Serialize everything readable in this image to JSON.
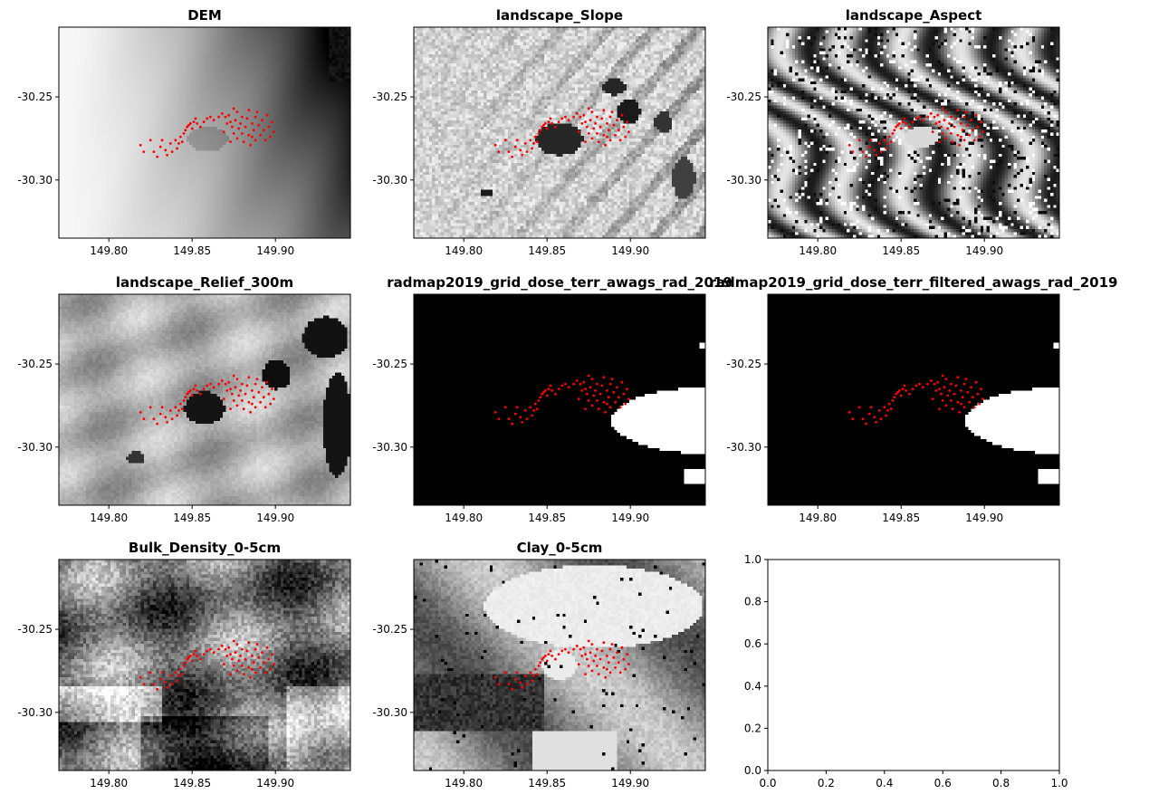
{
  "figure": {
    "layout": "3x3 grid of map panels"
  },
  "chart_data": [
    {
      "type": "heatmap",
      "title": "DEM",
      "xlim": [
        149.77,
        149.945
      ],
      "ylim": [
        -30.335,
        -30.208
      ],
      "xticks": [
        {
          "v": 149.8,
          "label": "149.80"
        },
        {
          "v": 149.85,
          "label": "149.85"
        },
        {
          "v": 149.9,
          "label": "149.90"
        }
      ],
      "yticks": [
        {
          "v": -30.25,
          "label": "-30.25"
        },
        {
          "v": -30.3,
          "label": "-30.30"
        }
      ],
      "colormap": "grayscale",
      "point_color": "#ff0000",
      "raster": "dem"
    },
    {
      "type": "heatmap",
      "title": "landscape_Slope",
      "xlim": [
        149.77,
        149.945
      ],
      "ylim": [
        -30.335,
        -30.208
      ],
      "xticks": [
        {
          "v": 149.8,
          "label": "149.80"
        },
        {
          "v": 149.85,
          "label": "149.85"
        },
        {
          "v": 149.9,
          "label": "149.90"
        }
      ],
      "yticks": [
        {
          "v": -30.25,
          "label": "-30.25"
        },
        {
          "v": -30.3,
          "label": "-30.30"
        }
      ],
      "colormap": "grayscale",
      "point_color": "#ff0000",
      "raster": "slope"
    },
    {
      "type": "heatmap",
      "title": "landscape_Aspect",
      "xlim": [
        149.77,
        149.945
      ],
      "ylim": [
        -30.335,
        -30.208
      ],
      "xticks": [
        {
          "v": 149.8,
          "label": "149.80"
        },
        {
          "v": 149.85,
          "label": "149.85"
        },
        {
          "v": 149.9,
          "label": "149.90"
        }
      ],
      "yticks": [
        {
          "v": -30.25,
          "label": "-30.25"
        },
        {
          "v": -30.3,
          "label": "-30.30"
        }
      ],
      "colormap": "grayscale",
      "point_color": "#ff0000",
      "raster": "aspect"
    },
    {
      "type": "heatmap",
      "title": "landscape_Relief_300m",
      "xlim": [
        149.77,
        149.945
      ],
      "ylim": [
        -30.335,
        -30.208
      ],
      "xticks": [
        {
          "v": 149.8,
          "label": "149.80"
        },
        {
          "v": 149.85,
          "label": "149.85"
        },
        {
          "v": 149.9,
          "label": "149.90"
        }
      ],
      "yticks": [
        {
          "v": -30.25,
          "label": "-30.25"
        },
        {
          "v": -30.3,
          "label": "-30.30"
        }
      ],
      "colormap": "grayscale",
      "point_color": "#ff0000",
      "raster": "relief"
    },
    {
      "type": "heatmap",
      "title": "radmap2019_grid_dose_terr_awags_rad_2019",
      "xlim": [
        149.77,
        149.945
      ],
      "ylim": [
        -30.335,
        -30.208
      ],
      "xticks": [
        {
          "v": 149.8,
          "label": "149.80"
        },
        {
          "v": 149.85,
          "label": "149.85"
        },
        {
          "v": 149.9,
          "label": "149.90"
        }
      ],
      "yticks": [
        {
          "v": -30.25,
          "label": "-30.25"
        },
        {
          "v": -30.3,
          "label": "-30.30"
        }
      ],
      "colormap": "grayscale",
      "point_color": "#ff0000",
      "raster": "rad"
    },
    {
      "type": "heatmap",
      "title": "radmap2019_grid_dose_terr_filtered_awags_rad_2019",
      "xlim": [
        149.77,
        149.945
      ],
      "ylim": [
        -30.335,
        -30.208
      ],
      "xticks": [
        {
          "v": 149.8,
          "label": "149.80"
        },
        {
          "v": 149.85,
          "label": "149.85"
        },
        {
          "v": 149.9,
          "label": "149.90"
        }
      ],
      "yticks": [
        {
          "v": -30.25,
          "label": "-30.25"
        },
        {
          "v": -30.3,
          "label": "-30.30"
        }
      ],
      "colormap": "grayscale",
      "point_color": "#ff0000",
      "raster": "rad"
    },
    {
      "type": "heatmap",
      "title": "Bulk_Density_0-5cm",
      "xlim": [
        149.77,
        149.945
      ],
      "ylim": [
        -30.335,
        -30.208
      ],
      "xticks": [
        {
          "v": 149.8,
          "label": "149.80"
        },
        {
          "v": 149.85,
          "label": "149.85"
        },
        {
          "v": 149.9,
          "label": "149.90"
        }
      ],
      "yticks": [
        {
          "v": -30.25,
          "label": "-30.25"
        },
        {
          "v": -30.3,
          "label": "-30.30"
        }
      ],
      "colormap": "grayscale",
      "point_color": "#ff0000",
      "raster": "bulk"
    },
    {
      "type": "heatmap",
      "title": "Clay_0-5cm",
      "xlim": [
        149.77,
        149.945
      ],
      "ylim": [
        -30.335,
        -30.208
      ],
      "xticks": [
        {
          "v": 149.8,
          "label": "149.80"
        },
        {
          "v": 149.85,
          "label": "149.85"
        },
        {
          "v": 149.9,
          "label": "149.90"
        }
      ],
      "yticks": [
        {
          "v": -30.25,
          "label": "-30.25"
        },
        {
          "v": -30.3,
          "label": "-30.30"
        }
      ],
      "colormap": "grayscale",
      "point_color": "#ff0000",
      "raster": "clay"
    },
    {
      "type": "scatter",
      "title": "",
      "xlim": [
        0.0,
        1.0
      ],
      "ylim": [
        0.0,
        1.0
      ],
      "xticks": [
        {
          "v": 0.0,
          "label": "0.0"
        },
        {
          "v": 0.2,
          "label": "0.2"
        },
        {
          "v": 0.4,
          "label": "0.4"
        },
        {
          "v": 0.6,
          "label": "0.6"
        },
        {
          "v": 0.8,
          "label": "0.8"
        },
        {
          "v": 1.0,
          "label": "1.0"
        }
      ],
      "yticks": [
        {
          "v": 0.0,
          "label": "0.0"
        },
        {
          "v": 0.2,
          "label": "0.2"
        },
        {
          "v": 0.4,
          "label": "0.4"
        },
        {
          "v": 0.6,
          "label": "0.6"
        },
        {
          "v": 0.8,
          "label": "0.8"
        },
        {
          "v": 1.0,
          "label": "1.0"
        }
      ],
      "raster": "none"
    }
  ],
  "sample_points": [
    [
      149.819,
      -30.279
    ],
    [
      149.821,
      -30.283
    ],
    [
      149.825,
      -30.276
    ],
    [
      149.827,
      -30.283
    ],
    [
      149.829,
      -30.286
    ],
    [
      149.831,
      -30.28
    ],
    [
      149.832,
      -30.276
    ],
    [
      149.834,
      -30.282
    ],
    [
      149.835,
      -30.285
    ],
    [
      149.837,
      -30.278
    ],
    [
      149.838,
      -30.283
    ],
    [
      149.84,
      -30.276
    ],
    [
      149.841,
      -30.281
    ],
    [
      149.842,
      -30.278
    ],
    [
      149.843,
      -30.274
    ],
    [
      149.844,
      -30.277
    ],
    [
      149.845,
      -30.272
    ],
    [
      149.846,
      -30.27
    ],
    [
      149.847,
      -30.268
    ],
    [
      149.848,
      -30.267
    ],
    [
      149.849,
      -30.266
    ],
    [
      149.85,
      -30.269
    ],
    [
      149.851,
      -30.265
    ],
    [
      149.852,
      -30.263
    ],
    [
      149.853,
      -30.266
    ],
    [
      149.855,
      -30.268
    ],
    [
      149.857,
      -30.265
    ],
    [
      149.859,
      -30.263
    ],
    [
      149.861,
      -30.262
    ],
    [
      149.863,
      -30.264
    ],
    [
      149.866,
      -30.262
    ],
    [
      149.868,
      -30.26
    ],
    [
      149.87,
      -30.262
    ],
    [
      149.872,
      -30.261
    ],
    [
      149.873,
      -30.265
    ],
    [
      149.874,
      -30.268
    ],
    [
      149.875,
      -30.272
    ],
    [
      149.876,
      -30.264
    ],
    [
      149.877,
      -30.259
    ],
    [
      149.877,
      -30.275
    ],
    [
      149.878,
      -30.269
    ],
    [
      149.879,
      -30.266
    ],
    [
      149.88,
      -30.262
    ],
    [
      149.88,
      -30.272
    ],
    [
      149.881,
      -30.277
    ],
    [
      149.882,
      -30.268
    ],
    [
      149.883,
      -30.263
    ],
    [
      149.884,
      -30.258
    ],
    [
      149.884,
      -30.273
    ],
    [
      149.885,
      -30.279
    ],
    [
      149.886,
      -30.266
    ],
    [
      149.887,
      -30.27
    ],
    [
      149.888,
      -30.262
    ],
    [
      149.888,
      -30.276
    ],
    [
      149.889,
      -30.259
    ],
    [
      149.89,
      -30.267
    ],
    [
      149.891,
      -30.273
    ],
    [
      149.892,
      -30.264
    ],
    [
      149.893,
      -30.27
    ],
    [
      149.894,
      -30.276
    ],
    [
      149.895,
      -30.261
    ],
    [
      149.896,
      -30.268
    ],
    [
      149.897,
      -30.274
    ],
    [
      149.898,
      -30.265
    ],
    [
      149.899,
      -30.271
    ],
    [
      149.875,
      -30.257
    ],
    [
      149.871,
      -30.266
    ],
    [
      149.869,
      -30.271
    ],
    [
      149.873,
      -30.277
    ],
    [
      149.886,
      -30.274
    ]
  ]
}
